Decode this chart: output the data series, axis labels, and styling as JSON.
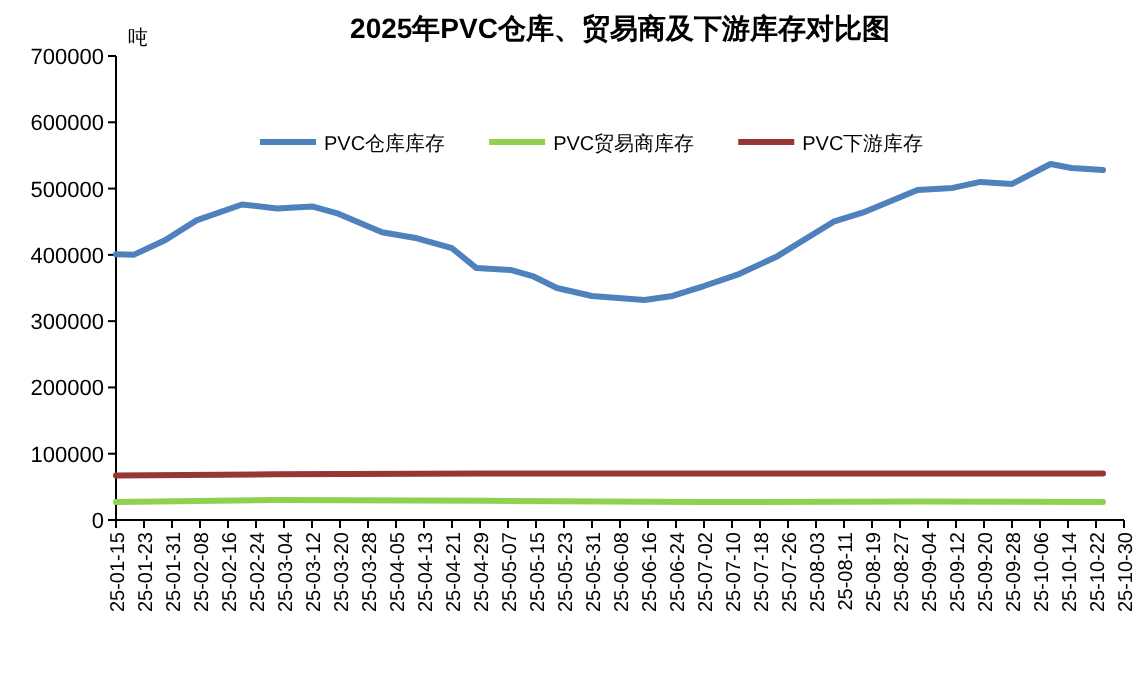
{
  "chart_data": {
    "type": "line",
    "title": "2025年PVC仓库、贸易商及下游库存对比图",
    "ylabel": "吨",
    "series": [
      {
        "name": "PVC仓库库存",
        "color": "#4f81bd",
        "x": [
          "2025-01-15",
          "2025-01-20",
          "2025-01-29",
          "2025-02-07",
          "2025-02-20",
          "2025-03-02",
          "2025-03-12",
          "2025-03-19",
          "2025-04-01",
          "2025-04-11",
          "2025-04-21",
          "2025-04-28",
          "2025-05-08",
          "2025-05-14",
          "2025-05-21",
          "2025-05-31",
          "2025-06-15",
          "2025-06-23",
          "2025-07-02",
          "2025-07-12",
          "2025-07-23",
          "2025-08-08",
          "2025-08-17",
          "2025-09-01",
          "2025-09-11",
          "2025-09-19",
          "2025-09-28",
          "2025-10-09",
          "2025-10-15",
          "2025-10-24"
        ],
        "values": [
          401000,
          400000,
          422000,
          452000,
          476000,
          470000,
          473000,
          463000,
          434000,
          425000,
          410000,
          380000,
          377000,
          368000,
          350000,
          338000,
          332000,
          338000,
          353000,
          371000,
          398000,
          450000,
          465000,
          498000,
          501000,
          510000,
          507000,
          537000,
          531000,
          528000
        ]
      },
      {
        "name": "PVC贸易商库存",
        "color": "#92d050",
        "x": [
          "2025-01-15",
          "2025-03-01",
          "2025-05-01",
          "2025-07-01",
          "2025-09-01",
          "2025-10-24"
        ],
        "values": [
          27000,
          30000,
          29000,
          27000,
          28000,
          27000
        ]
      },
      {
        "name": "PVC下游库存",
        "color": "#953735",
        "x": [
          "2025-01-15",
          "2025-03-01",
          "2025-05-01",
          "2025-07-01",
          "2025-09-01",
          "2025-10-24"
        ],
        "values": [
          67000,
          69000,
          70000,
          70000,
          70000,
          70000
        ]
      }
    ],
    "xlim": [
      "2025-01-15",
      "2025-10-30"
    ],
    "xticks": [
      {
        "value": "2025-01-15",
        "label": "25-01-15"
      },
      {
        "value": "2025-01-23",
        "label": "25-01-23"
      },
      {
        "value": "2025-01-31",
        "label": "25-01-31"
      },
      {
        "value": "2025-02-08",
        "label": "25-02-08"
      },
      {
        "value": "2025-02-16",
        "label": "25-02-16"
      },
      {
        "value": "2025-02-24",
        "label": "25-02-24"
      },
      {
        "value": "2025-03-04",
        "label": "25-03-04"
      },
      {
        "value": "2025-03-12",
        "label": "25-03-12"
      },
      {
        "value": "2025-03-20",
        "label": "25-03-20"
      },
      {
        "value": "2025-03-28",
        "label": "25-03-28"
      },
      {
        "value": "2025-04-05",
        "label": "25-04-05"
      },
      {
        "value": "2025-04-13",
        "label": "25-04-13"
      },
      {
        "value": "2025-04-21",
        "label": "25-04-21"
      },
      {
        "value": "2025-04-29",
        "label": "25-04-29"
      },
      {
        "value": "2025-05-07",
        "label": "25-05-07"
      },
      {
        "value": "2025-05-15",
        "label": "25-05-15"
      },
      {
        "value": "2025-05-23",
        "label": "25-05-23"
      },
      {
        "value": "2025-05-31",
        "label": "25-05-31"
      },
      {
        "value": "2025-06-08",
        "label": "25-06-08"
      },
      {
        "value": "2025-06-16",
        "label": "25-06-16"
      },
      {
        "value": "2025-06-24",
        "label": "25-06-24"
      },
      {
        "value": "2025-07-02",
        "label": "25-07-02"
      },
      {
        "value": "2025-07-10",
        "label": "25-07-10"
      },
      {
        "value": "2025-07-18",
        "label": "25-07-18"
      },
      {
        "value": "2025-07-26",
        "label": "25-07-26"
      },
      {
        "value": "2025-08-03",
        "label": "25-08-03"
      },
      {
        "value": "2025-08-11",
        "label": "25-08-11"
      },
      {
        "value": "2025-08-19",
        "label": "25-08-19"
      },
      {
        "value": "2025-08-27",
        "label": "25-08-27"
      },
      {
        "value": "2025-09-04",
        "label": "25-09-04"
      },
      {
        "value": "2025-09-12",
        "label": "25-09-12"
      },
      {
        "value": "2025-09-20",
        "label": "25-09-20"
      },
      {
        "value": "2025-09-28",
        "label": "25-09-28"
      },
      {
        "value": "2025-10-06",
        "label": "25-10-06"
      },
      {
        "value": "2025-10-14",
        "label": "25-10-14"
      },
      {
        "value": "2025-10-22",
        "label": "25-10-22"
      },
      {
        "value": "2025-10-30",
        "label": "25-10-30"
      }
    ],
    "ylim": [
      0,
      700000
    ],
    "yticks": [
      0,
      100000,
      200000,
      300000,
      400000,
      500000,
      600000,
      700000
    ],
    "grid": false,
    "legend": "top"
  }
}
